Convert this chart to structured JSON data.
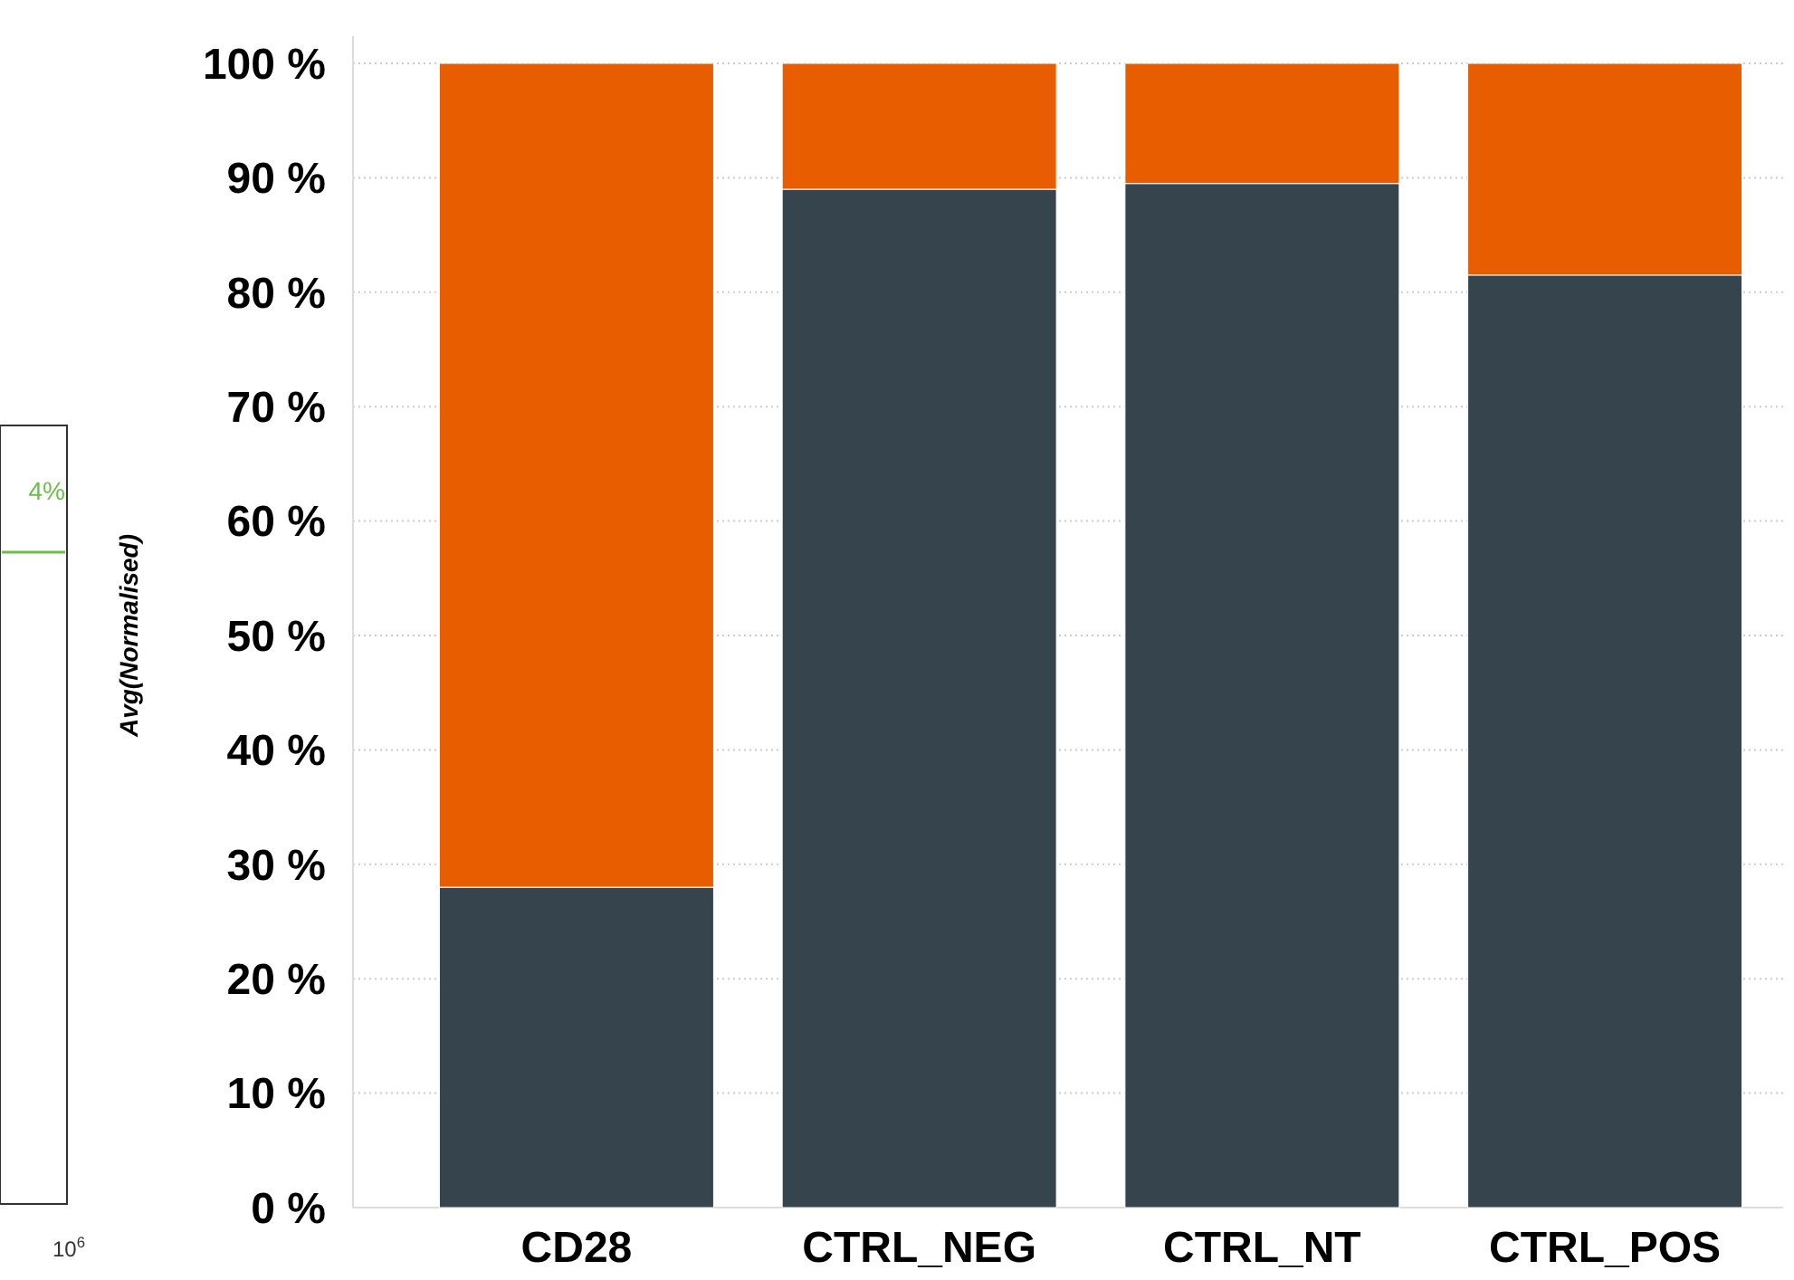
{
  "chart_data": [
    {
      "type": "other",
      "annotations": [
        "4%",
        "10$^{6}$"
      ]
    },
    {
      "type": "bar",
      "stacked": true,
      "ylabel": "Avg(Normalised)",
      "categories": [
        "CD28",
        "CTRL_NEG",
        "CTRL_NT",
        "CTRL_POS"
      ],
      "series": [
        {
          "color": "#36454d",
          "values": [
            28,
            89,
            89.5,
            81.5
          ]
        },
        {
          "color": "#e85d00",
          "values": [
            72,
            11,
            10.5,
            18.5
          ]
        }
      ],
      "ylim": [
        0,
        100
      ],
      "yticks": [
        {
          "value": 0,
          "label": "0 %"
        },
        {
          "value": 10,
          "label": "10 %"
        },
        {
          "value": 20,
          "label": "20 %"
        },
        {
          "value": 30,
          "label": "30 %"
        },
        {
          "value": 40,
          "label": "40 %"
        },
        {
          "value": 50,
          "label": "50 %"
        },
        {
          "value": 60,
          "label": "60 %"
        },
        {
          "value": 70,
          "label": "70 %"
        },
        {
          "value": 80,
          "label": "80 %"
        },
        {
          "value": 90,
          "label": "90 %"
        },
        {
          "value": 100,
          "label": "100 %"
        }
      ],
      "grid": "y"
    }
  ]
}
